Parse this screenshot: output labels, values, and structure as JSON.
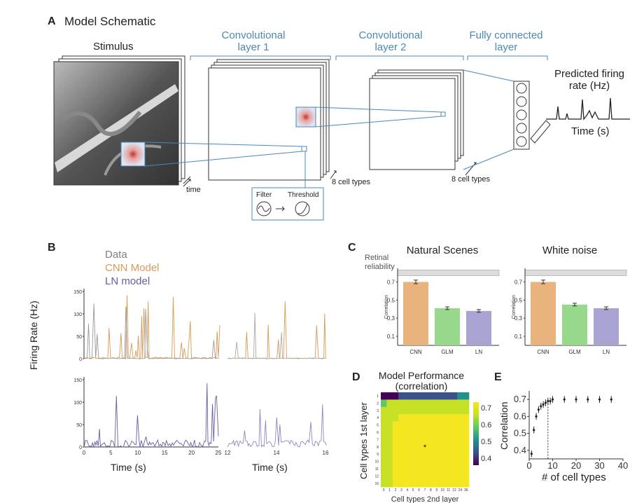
{
  "panel_a": {
    "letter": "A",
    "title": "Model Schematic",
    "stimulus_label": "Stimulus",
    "conv1_label_line1": "Convolutional",
    "conv1_label_line2": "layer 1",
    "conv2_label_line1": "Convolutional",
    "conv2_label_line2": "layer 2",
    "fc_label_line1": "Fully connected",
    "fc_label_line2": "layer",
    "time_label": "time",
    "cell_types_1": "8 cell types",
    "cell_types_2": "8 cell types",
    "filter_label": "Filter",
    "threshold_label": "Threshold",
    "predicted_line1": "Predicted firing",
    "predicted_line2": "rate (Hz)",
    "time_s_label": "Time (s)"
  },
  "panel_b": {
    "letter": "B",
    "legend": [
      "Data",
      "CNN Model",
      "LN model"
    ],
    "ylabel": "Firing Rate (Hz)",
    "xlabel_left": "Time (s)",
    "xlabel_right": "Time (s)",
    "top_yticks": [
      "150",
      "100",
      "50",
      "0"
    ],
    "bottom_yticks": [
      "150",
      "100",
      "50",
      "0"
    ],
    "xticks_left": [
      "0",
      "5",
      "10",
      "15",
      "20",
      "25"
    ],
    "xticks_right": [
      "12",
      "14",
      "16"
    ]
  },
  "panel_c": {
    "letter": "C",
    "retinal_line1": "Retinal",
    "retinal_line2": "reliability",
    "ylabel": "Correlation",
    "yticks": [
      "0.7",
      "0.5",
      "0.3",
      "0.1"
    ]
  },
  "panel_d": {
    "letter": "D",
    "title_line1": "Model Performance",
    "title_line2": "(correlation)",
    "ylabel": "Cell types 1st layer",
    "xlabel": "Cell types 2nd layer",
    "colorbar_ticks": [
      "0.7",
      "0.6",
      "0.5",
      "0.4"
    ],
    "row_labels": [
      "1",
      "2",
      "3",
      "4",
      "5",
      "6",
      "7",
      "8",
      "9",
      "10",
      "11",
      "12",
      "16"
    ],
    "col_labels": [
      "0",
      "1",
      "2",
      "3",
      "4",
      "5",
      "6",
      "7",
      "8",
      "9",
      "10",
      "11",
      "12",
      "24",
      "36"
    ],
    "marker": "*"
  },
  "panel_e": {
    "letter": "E",
    "ylabel": "Correlation",
    "xlabel": "# of cell types",
    "yticks": [
      "0.7",
      "0.6",
      "0.5",
      "0.4"
    ],
    "xticks": [
      "0",
      "10",
      "20",
      "30",
      "40"
    ]
  },
  "chart_data": [
    {
      "type": "bar",
      "title": "Natural Scenes",
      "categories": [
        "CNN",
        "GLM",
        "LN"
      ],
      "values": [
        0.7,
        0.41,
        0.38
      ],
      "errors": [
        0.02,
        0.015,
        0.015
      ],
      "colors": [
        "#e8b37c",
        "#98d88a",
        "#a9a4d1"
      ],
      "reliability": 0.8,
      "ylabel": "Correlation",
      "ylim": [
        0.0,
        0.85
      ]
    },
    {
      "type": "bar",
      "title": "White noise",
      "categories": [
        "CNN",
        "GLM",
        "LN"
      ],
      "values": [
        0.7,
        0.45,
        0.41
      ],
      "errors": [
        0.02,
        0.015,
        0.015
      ],
      "colors": [
        "#e8b37c",
        "#98d88a",
        "#a9a4d1"
      ],
      "reliability": 0.8,
      "ylabel": "Correlation",
      "ylim": [
        0.0,
        0.85
      ]
    },
    {
      "type": "scatter",
      "title": "",
      "x": [
        1,
        2,
        3,
        4,
        5,
        6,
        7,
        8,
        9,
        10,
        15,
        20,
        25,
        30,
        35
      ],
      "y": [
        0.38,
        0.52,
        0.6,
        0.64,
        0.66,
        0.67,
        0.68,
        0.69,
        0.69,
        0.7,
        0.7,
        0.7,
        0.7,
        0.7,
        0.7
      ],
      "errors": [
        0.02,
        0.02,
        0.02,
        0.02,
        0.02,
        0.02,
        0.02,
        0.02,
        0.02,
        0.02,
        0.02,
        0.02,
        0.02,
        0.02,
        0.02
      ],
      "xlabel": "# of cell types",
      "ylabel": "Correlation",
      "xlim": [
        0,
        40
      ],
      "ylim": [
        0.35,
        0.75
      ],
      "vline": 8
    }
  ]
}
